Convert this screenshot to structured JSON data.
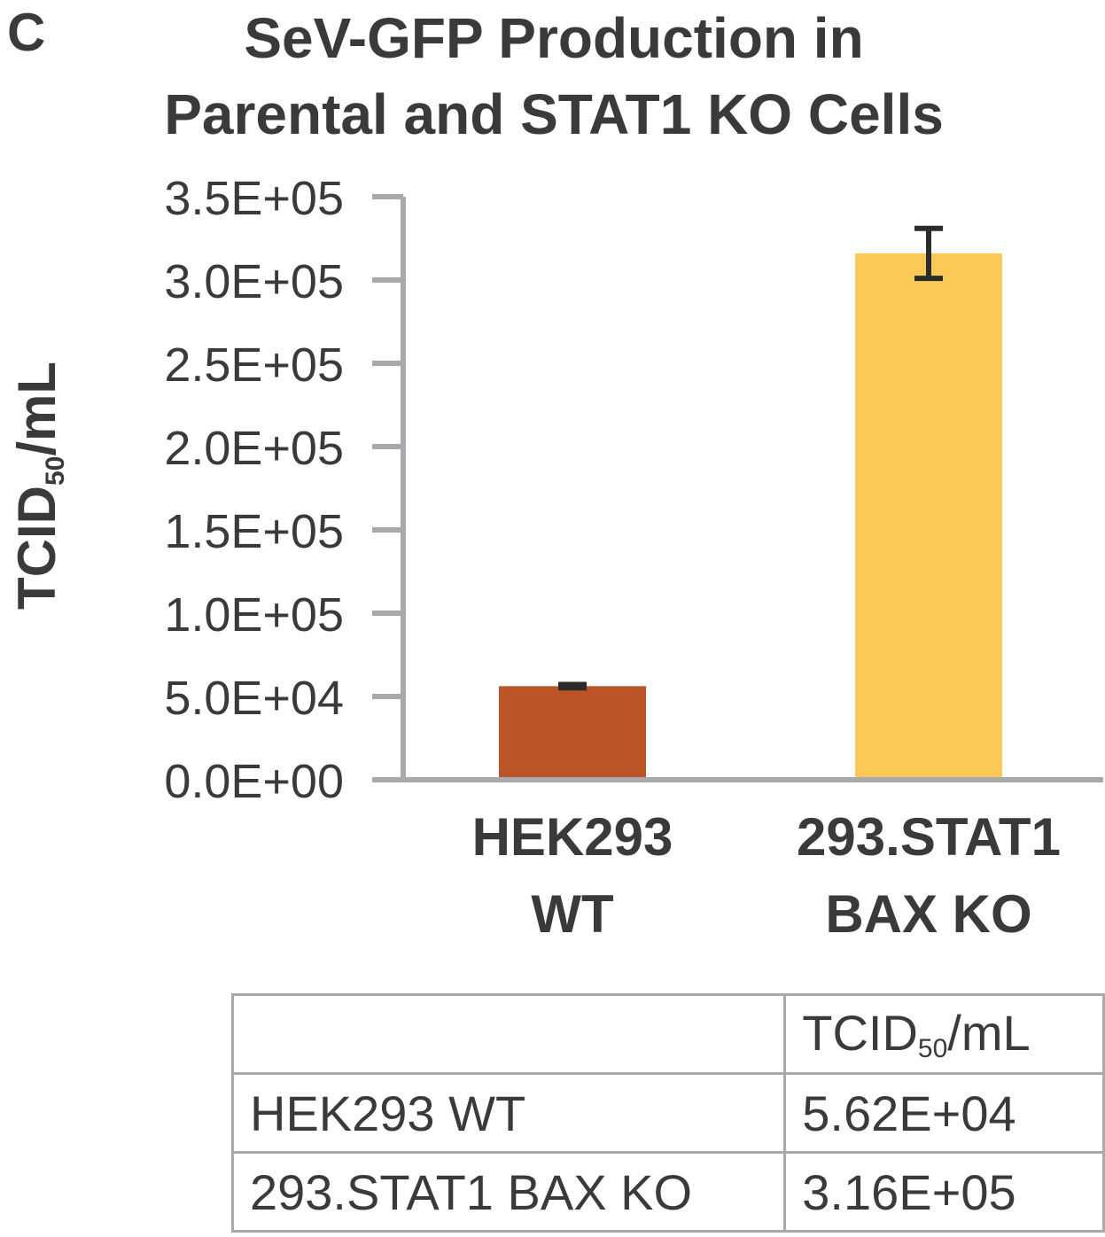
{
  "panel_letter": "C",
  "colors": {
    "axis": "#a7a9ac",
    "text": "#3a3a3a",
    "bar_hek293": "#bb5528",
    "bar_stat1": "#fcc856",
    "error_bar": "#2b2b2b"
  },
  "chart_data": {
    "type": "bar",
    "title_lines": [
      "SeV-GFP Production in",
      "Parental and STAT1 KO Cells"
    ],
    "ylabel_main": "TCID",
    "ylabel_sub": "50",
    "ylabel_tail": "/mL",
    "xlabel": "",
    "ylim": [
      0,
      350000
    ],
    "yticks": [
      0,
      50000,
      100000,
      150000,
      200000,
      250000,
      300000,
      350000
    ],
    "ytick_labels": [
      "0.0E+00",
      "5.0E+04",
      "1.0E+05",
      "1.5E+05",
      "2.0E+05",
      "2.5E+05",
      "3.0E+05",
      "3.5E+05"
    ],
    "grid": false,
    "legend": "none",
    "categories": [
      {
        "lines": [
          "HEK293",
          "WT"
        ]
      },
      {
        "lines": [
          "293.STAT1",
          "BAX KO"
        ]
      }
    ],
    "values": [
      56200,
      316000
    ],
    "errors": [
      1000,
      15000
    ]
  },
  "table": {
    "header_main": "TCID",
    "header_sub": "50",
    "header_tail": "/mL",
    "rows": [
      {
        "label": "HEK293 WT",
        "value": "5.62E+04"
      },
      {
        "label": "293.STAT1 BAX KO",
        "value": "3.16E+05"
      }
    ]
  }
}
